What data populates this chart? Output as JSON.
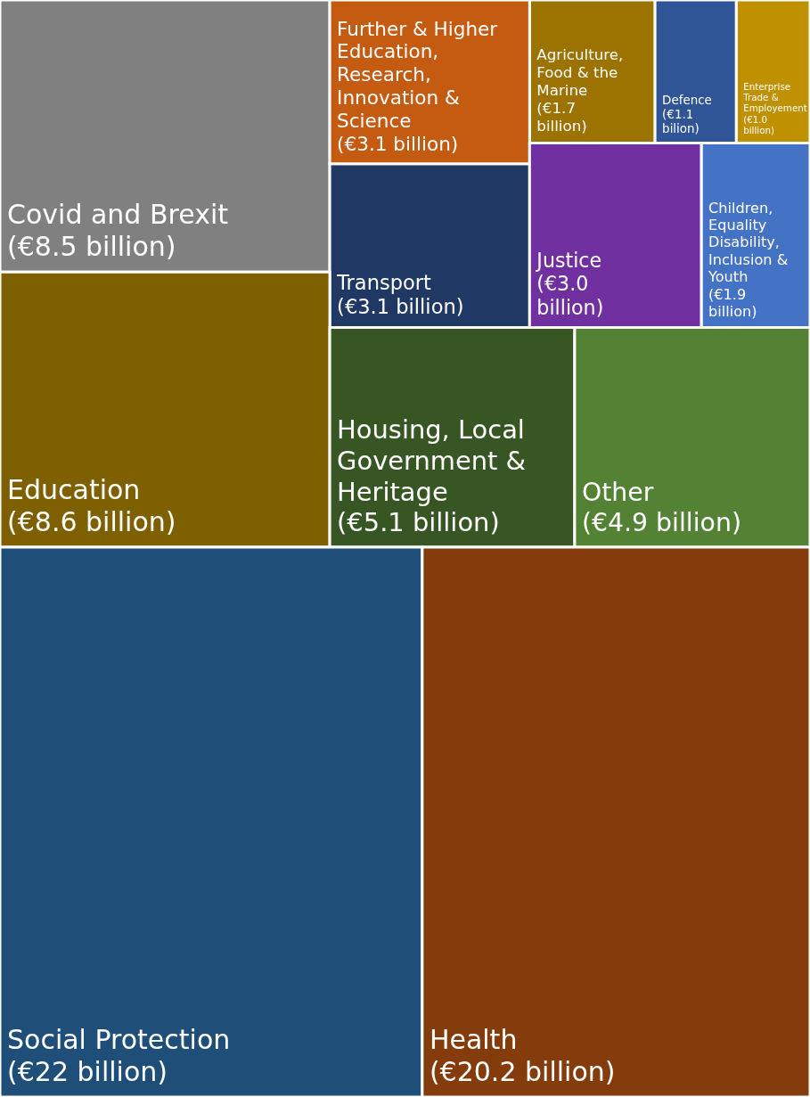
{
  "chart_data": {
    "type": "other",
    "categories": [
      "Covid and Brexit",
      "Transport",
      "Agriculture, Food & the Marine",
      "Enterprise Trade & Employement",
      "Further & Higher Education, Research, Innovation & Science",
      "Children, Equality Disability, Inclusion & Youth",
      "Defence",
      "Justice",
      "Education",
      "Housing, Local Government & Heritage",
      "Other",
      "Social Protection",
      "Health"
    ],
    "values": [
      8.5,
      3.1,
      1.7,
      1.0,
      3.1,
      1.9,
      1.1,
      3.0,
      8.6,
      5.1,
      4.9,
      22,
      20.2
    ],
    "value_labels": [
      "(€8.5 billion)",
      "(€3.1 billion)",
      "(€1.7 billion)",
      "(€1.0 billion)",
      "(€3.1 billion)",
      "(€1.9 billion)",
      "(€1.1 bilion)",
      "(€3.0 billion)",
      "(€8.6 billion)",
      "(€5.1 billion)",
      "(€4.9 billion)",
      "(€22 billion)",
      "(€20.2 billion)"
    ],
    "colors": [
      "#808080",
      "#203864",
      "#9c7200",
      "#bf9000",
      "#c55a11",
      "#4472c4",
      "#2f5597",
      "#7030a0",
      "#7f6000",
      "#375623",
      "#548235",
      "#1f4e79",
      "#843c0c"
    ]
  }
}
